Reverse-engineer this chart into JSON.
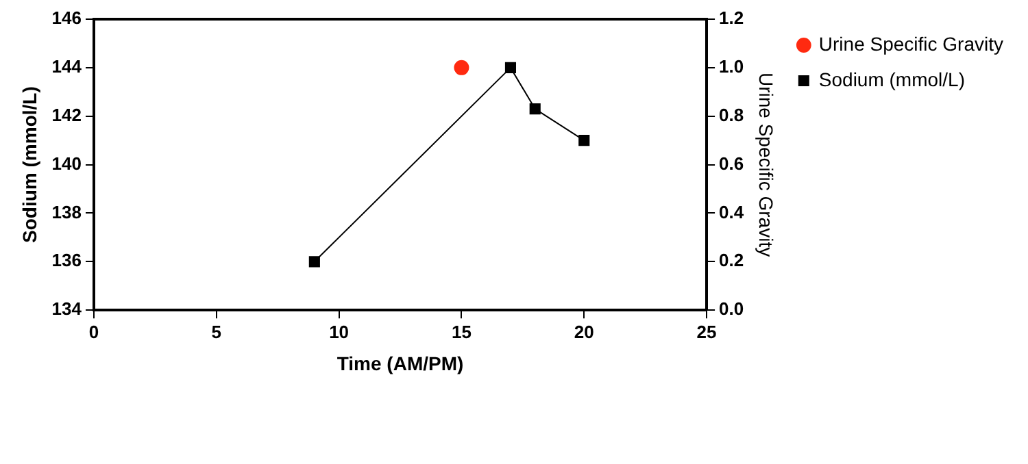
{
  "chart_data": {
    "type": "line",
    "xlabel": "Time (AM/PM)",
    "ylabel": "Sodium (mmol/L)",
    "y2label": "Urine Specific Gravity",
    "xlim": [
      0,
      25
    ],
    "xticks": [
      0,
      5,
      10,
      15,
      20,
      25
    ],
    "ylim": [
      134,
      146
    ],
    "yticks": [
      134,
      136,
      138,
      140,
      142,
      144,
      146
    ],
    "y2lim": [
      0,
      1.2
    ],
    "y2ticks": [
      {
        "value": 0,
        "label": "0.0"
      },
      {
        "value": 0.2,
        "label": "0.2"
      },
      {
        "value": 0.4,
        "label": "0.4"
      },
      {
        "value": 0.6,
        "label": "0.6"
      },
      {
        "value": 0.8,
        "label": "0.8"
      },
      {
        "value": 1,
        "label": "1.0"
      },
      {
        "value": 1.2,
        "label": "1.2"
      }
    ],
    "grid": false,
    "legend": "right",
    "series": [
      {
        "name": "Urine Specific Gravity",
        "type": "scatter",
        "axis": "y2",
        "marker": "circle",
        "color": "#ff2a10",
        "x": [
          15
        ],
        "values": [
          1.0
        ]
      },
      {
        "name": "Sodium (mmol/L)",
        "marker": "square",
        "color": "#000000",
        "x": [
          9,
          17,
          18,
          20
        ],
        "values": [
          136,
          144,
          142.3,
          141
        ]
      }
    ]
  }
}
